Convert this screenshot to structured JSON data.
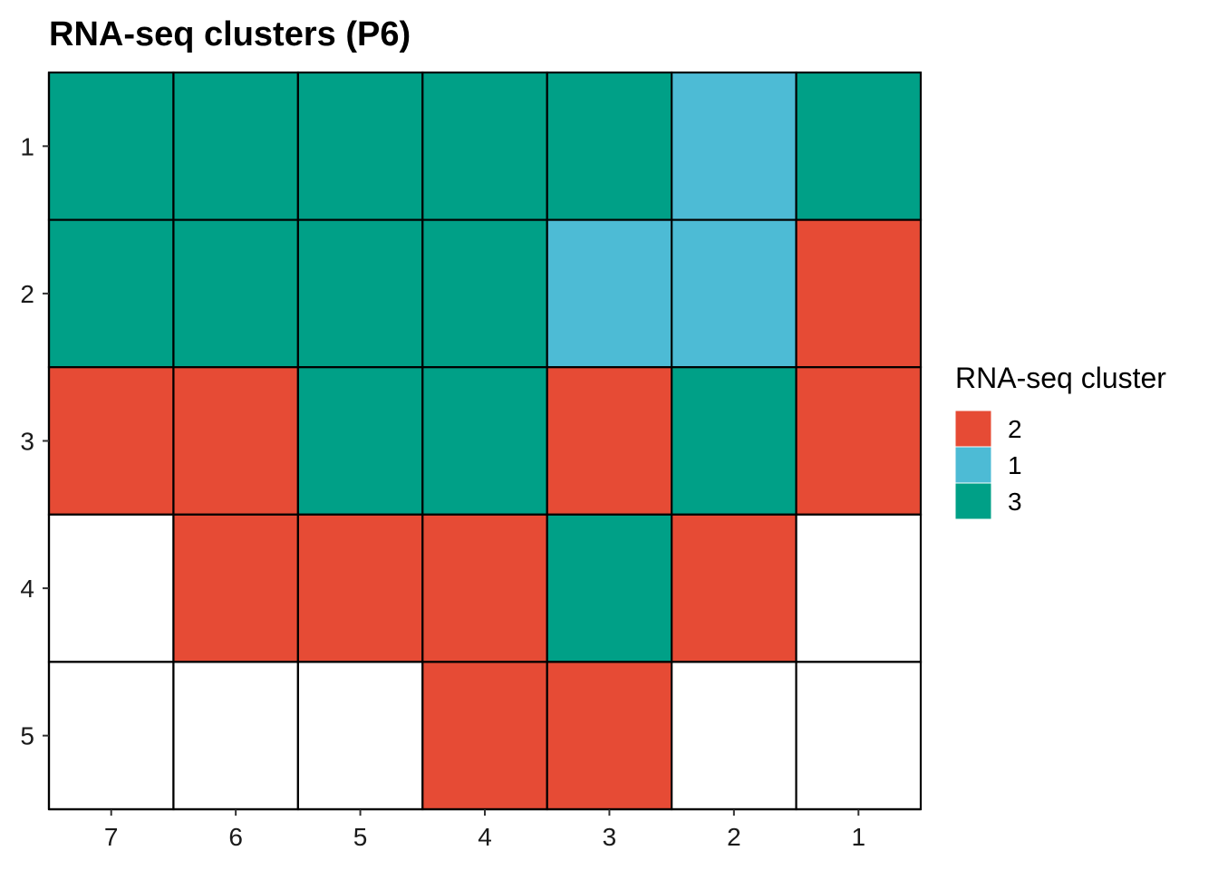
{
  "chart_data": {
    "type": "heatmap",
    "title": "RNA-seq clusters (P6)",
    "xlabel": "",
    "ylabel": "",
    "x_categories": [
      "7",
      "6",
      "5",
      "4",
      "3",
      "2",
      "1"
    ],
    "y_categories": [
      "1",
      "2",
      "3",
      "4",
      "5"
    ],
    "cells": [
      [
        "3",
        "3",
        "3",
        "3",
        "3",
        "1",
        "3"
      ],
      [
        "3",
        "3",
        "3",
        "3",
        "1",
        "1",
        "2"
      ],
      [
        "2",
        "2",
        "3",
        "3",
        "2",
        "3",
        "2"
      ],
      [
        null,
        "2",
        "2",
        "2",
        "3",
        "2",
        null
      ],
      [
        null,
        null,
        null,
        "2",
        "2",
        null,
        null
      ]
    ],
    "empty_fill": "#ffffff",
    "grid_line_color": "#000000",
    "legend": {
      "title": "RNA-seq cluster",
      "placement": "right",
      "entries": [
        {
          "label": "2",
          "color": "#E64B35"
        },
        {
          "label": "1",
          "color": "#4DBBD5"
        },
        {
          "label": "3",
          "color": "#00A087"
        }
      ]
    }
  }
}
